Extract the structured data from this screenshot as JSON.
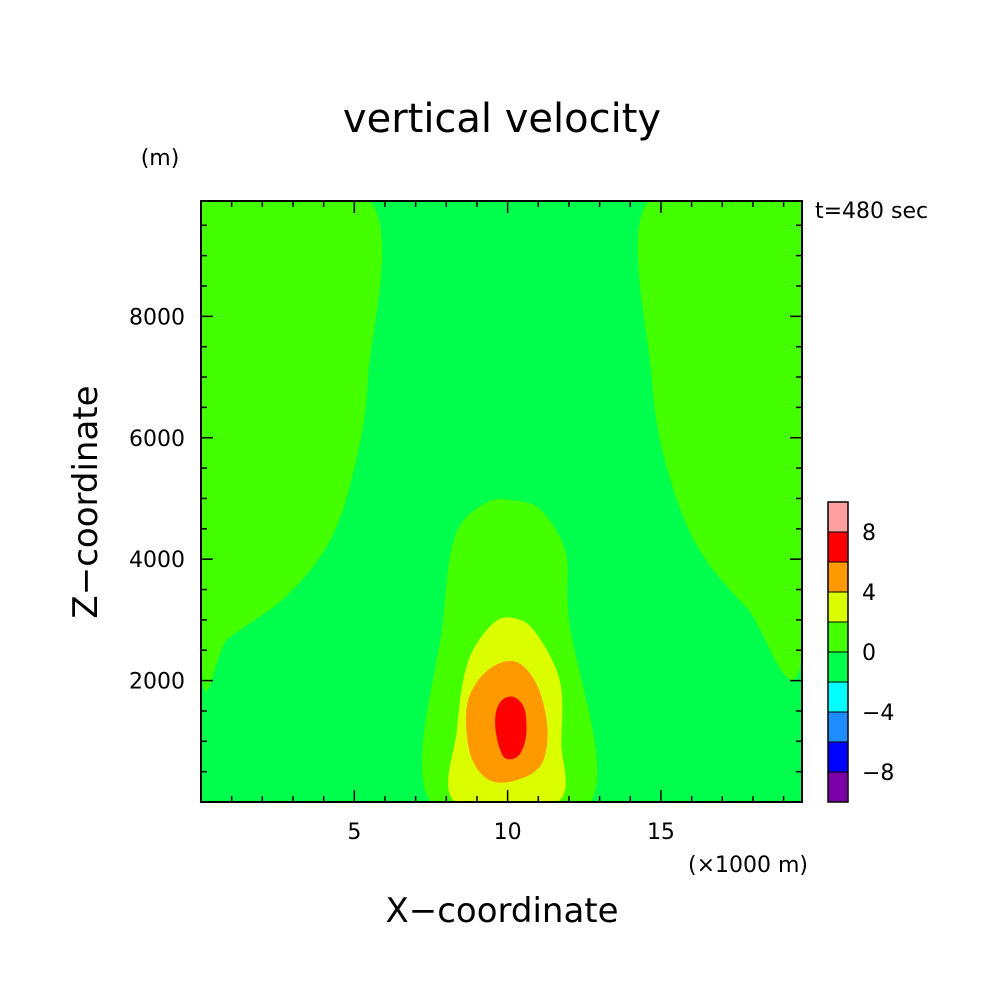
{
  "chart_data": {
    "type": "heatmap",
    "subtype": "filled-contour",
    "title": "vertical velocity",
    "xlabel": "X−coordinate",
    "ylabel": "Z−coordinate",
    "x_unit_label": "(×1000 m)",
    "y_unit_label": "(m)",
    "time_label": "t=480 sec",
    "xlim": [
      0,
      19.6
    ],
    "ylim": [
      0,
      9900
    ],
    "x_ticks": [
      5,
      10,
      15
    ],
    "y_ticks": [
      2000,
      4000,
      6000,
      8000
    ],
    "x_tick_labels": [
      "5",
      "10",
      "15"
    ],
    "y_tick_labels": [
      "2000",
      "4000",
      "6000",
      "8000"
    ],
    "colorbar": {
      "levels": [
        -10,
        -8,
        -6,
        -4,
        -2,
        0,
        2,
        4,
        6,
        8,
        10
      ],
      "colors": [
        "#7c00a8",
        "#0000ff",
        "#1e8cff",
        "#00ffff",
        "#00ff4c",
        "#44ff00",
        "#dcff00",
        "#ff9900",
        "#ff0000",
        "#ffa0a0"
      ],
      "tick_values": [
        -8,
        -4,
        0,
        4,
        8
      ],
      "tick_labels": [
        "−8",
        "−4",
        "0",
        "4",
        "8"
      ]
    },
    "regions": [
      {
        "name": "0 to 2 left",
        "range": [
          0,
          2
        ],
        "color": "#44ff00",
        "boundary": [
          [
            0,
            9900
          ],
          [
            5.5,
            9900
          ],
          [
            5.45,
            7000
          ],
          [
            5.0,
            5500
          ],
          [
            4.2,
            4300
          ],
          [
            2.8,
            3400
          ],
          [
            0.9,
            2700
          ],
          [
            0,
            2300
          ]
        ]
      },
      {
        "name": "0 to 2 right",
        "range": [
          0,
          2
        ],
        "color": "#44ff00",
        "boundary": [
          [
            19.6,
            9900
          ],
          [
            14.6,
            9900
          ],
          [
            14.7,
            7000
          ],
          [
            15.2,
            5500
          ],
          [
            16.2,
            4200
          ],
          [
            17.8,
            3200
          ],
          [
            19.6,
            2400
          ]
        ]
      },
      {
        "name": "0 to 2 center",
        "range": [
          0,
          2
        ],
        "color": "#44ff00",
        "boundary": [
          [
            7.5,
            0
          ],
          [
            7.9,
            3000
          ],
          [
            8.3,
            4400
          ],
          [
            9.3,
            4930
          ],
          [
            10.2,
            4970
          ],
          [
            11.1,
            4800
          ],
          [
            11.9,
            4100
          ],
          [
            12.0,
            3000
          ],
          [
            12.7,
            0
          ]
        ]
      },
      {
        "name": "2 to 4",
        "range": [
          2,
          4
        ],
        "color": "#dcff00",
        "boundary": [
          [
            8.3,
            0
          ],
          [
            8.35,
            1200
          ],
          [
            8.7,
            2300
          ],
          [
            9.5,
            2930
          ],
          [
            10.2,
            3030
          ],
          [
            10.9,
            2800
          ],
          [
            11.7,
            2000
          ],
          [
            11.75,
            1000
          ],
          [
            11.6,
            0
          ]
        ]
      },
      {
        "name": "4 to 6",
        "range": [
          4,
          6
        ],
        "color": "#ff9900",
        "boundary": [
          [
            9.4,
            360
          ],
          [
            8.8,
            760
          ],
          [
            8.65,
            1500
          ],
          [
            9.0,
            1980
          ],
          [
            9.7,
            2280
          ],
          [
            10.4,
            2280
          ],
          [
            11.0,
            1880
          ],
          [
            11.3,
            1200
          ],
          [
            11.1,
            620
          ],
          [
            10.3,
            360
          ]
        ]
      },
      {
        "name": "6 to 8",
        "range": [
          6,
          8
        ],
        "color": "#ff0000",
        "boundary": [
          [
            9.9,
            730
          ],
          [
            9.65,
            1050
          ],
          [
            9.6,
            1420
          ],
          [
            9.8,
            1670
          ],
          [
            10.2,
            1730
          ],
          [
            10.55,
            1530
          ],
          [
            10.6,
            1080
          ],
          [
            10.35,
            760
          ]
        ]
      }
    ],
    "background_color": "#00ff4c"
  }
}
